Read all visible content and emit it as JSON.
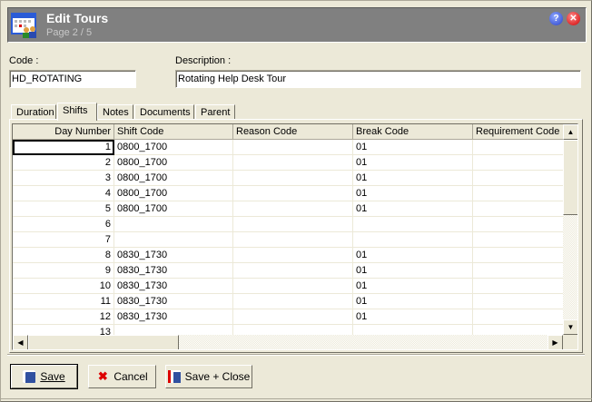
{
  "window": {
    "title": "Edit Tours",
    "subtitle": "Page 2 / 5",
    "help_icon": "help-icon",
    "close_icon": "close-icon"
  },
  "form": {
    "code_label": "Code :",
    "code_value": "HD_ROTATING",
    "description_label": "Description :",
    "description_value": "Rotating Help Desk Tour"
  },
  "tabs": [
    {
      "label": "Duration"
    },
    {
      "label": "Shifts",
      "active": true
    },
    {
      "label": "Notes"
    },
    {
      "label": "Documents"
    },
    {
      "label": "Parent"
    }
  ],
  "grid": {
    "columns": [
      "Day Number",
      "Shift Code",
      "Reason Code",
      "Break Code",
      "Requirement Code"
    ],
    "rows": [
      [
        "1",
        "0800_1700",
        "",
        "01",
        ""
      ],
      [
        "2",
        "0800_1700",
        "",
        "01",
        ""
      ],
      [
        "3",
        "0800_1700",
        "",
        "01",
        ""
      ],
      [
        "4",
        "0800_1700",
        "",
        "01",
        ""
      ],
      [
        "5",
        "0800_1700",
        "",
        "01",
        ""
      ],
      [
        "6",
        "",
        "",
        "",
        ""
      ],
      [
        "7",
        "",
        "",
        "",
        ""
      ],
      [
        "8",
        "0830_1730",
        "",
        "01",
        ""
      ],
      [
        "9",
        "0830_1730",
        "",
        "01",
        ""
      ],
      [
        "10",
        "0830_1730",
        "",
        "01",
        ""
      ],
      [
        "11",
        "0830_1730",
        "",
        "01",
        ""
      ],
      [
        "12",
        "0830_1730",
        "",
        "01",
        ""
      ],
      [
        "13",
        "",
        "",
        "",
        ""
      ]
    ]
  },
  "buttons": {
    "save": "Save",
    "cancel": "Cancel",
    "save_close": "Save + Close"
  }
}
